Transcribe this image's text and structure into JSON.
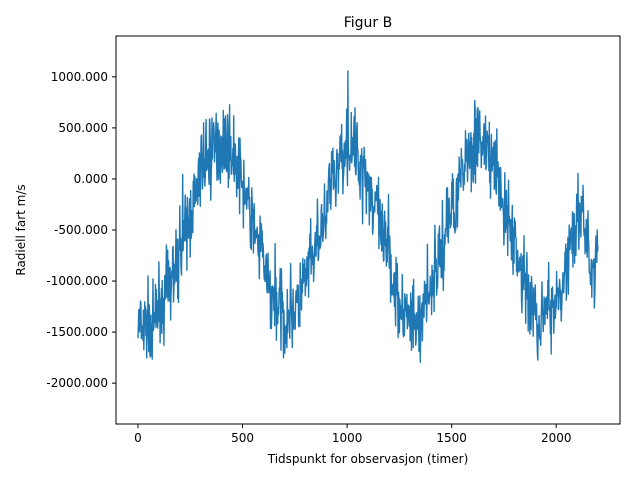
{
  "chart_data": {
    "type": "line",
    "title": "Figur B",
    "xlabel": "Tidspunkt for observasjon (timer)",
    "ylabel": "Radiell fart m/s",
    "xlim": [
      -105,
      2305
    ],
    "ylim": [
      -2400,
      1400
    ],
    "x_ticks": [
      0,
      500,
      1000,
      1500,
      2000
    ],
    "x_tick_labels": [
      "0",
      "500",
      "1000",
      "1500",
      "2000"
    ],
    "y_ticks": [
      -2000,
      -1500,
      -1000,
      -500,
      0,
      500,
      1000
    ],
    "y_tick_labels": [
      "-2000.000",
      "-1500.000",
      "-1000.000",
      "-500.000",
      "0.000",
      "500.000",
      "1000.000"
    ],
    "grid": false,
    "line_color": "#1f77b4",
    "series": [
      {
        "x": [
          0,
          25,
          50,
          75,
          100,
          125,
          150,
          175,
          200,
          225,
          250,
          275,
          300,
          325,
          350,
          375,
          400,
          425,
          450,
          475,
          500,
          525,
          550,
          575,
          600,
          625,
          650,
          675,
          700,
          725,
          750,
          775,
          800,
          825,
          850,
          875,
          900,
          925,
          950,
          975,
          1000,
          1025,
          1050,
          1075,
          1100,
          1125,
          1150,
          1175,
          1200,
          1225,
          1250,
          1275,
          1300,
          1325,
          1350,
          1375,
          1400,
          1425,
          1450,
          1475,
          1500,
          1525,
          1550,
          1575,
          1600,
          1625,
          1650,
          1675,
          1700,
          1725,
          1750,
          1775,
          1800,
          1825,
          1850,
          1875,
          1900,
          1925,
          1950,
          1975,
          2000,
          2025,
          2050,
          2075,
          2100,
          2125,
          2150,
          2175,
          2200
        ],
        "values": [
          -1450,
          -1520,
          -1380,
          -1460,
          -1250,
          -1180,
          -1020,
          -900,
          -720,
          -560,
          -380,
          -160,
          40,
          180,
          290,
          330,
          380,
          320,
          260,
          140,
          -40,
          -240,
          -430,
          -660,
          -820,
          -1050,
          -1180,
          -1260,
          -1380,
          -1340,
          -1250,
          -1190,
          -1020,
          -860,
          -720,
          -520,
          -280,
          -80,
          110,
          250,
          330,
          300,
          220,
          130,
          -30,
          -230,
          -380,
          -640,
          -810,
          -1010,
          -1160,
          -1290,
          -1420,
          -1390,
          -1310,
          -1200,
          -1050,
          -870,
          -690,
          -490,
          -290,
          -100,
          80,
          250,
          340,
          390,
          350,
          260,
          120,
          -70,
          -270,
          -460,
          -640,
          -820,
          -1060,
          -1200,
          -1320,
          -1390,
          -1350,
          -1240,
          -1160,
          -980,
          -830,
          -660,
          -470,
          -330,
          -600,
          -1000,
          -620
        ]
      }
    ]
  }
}
